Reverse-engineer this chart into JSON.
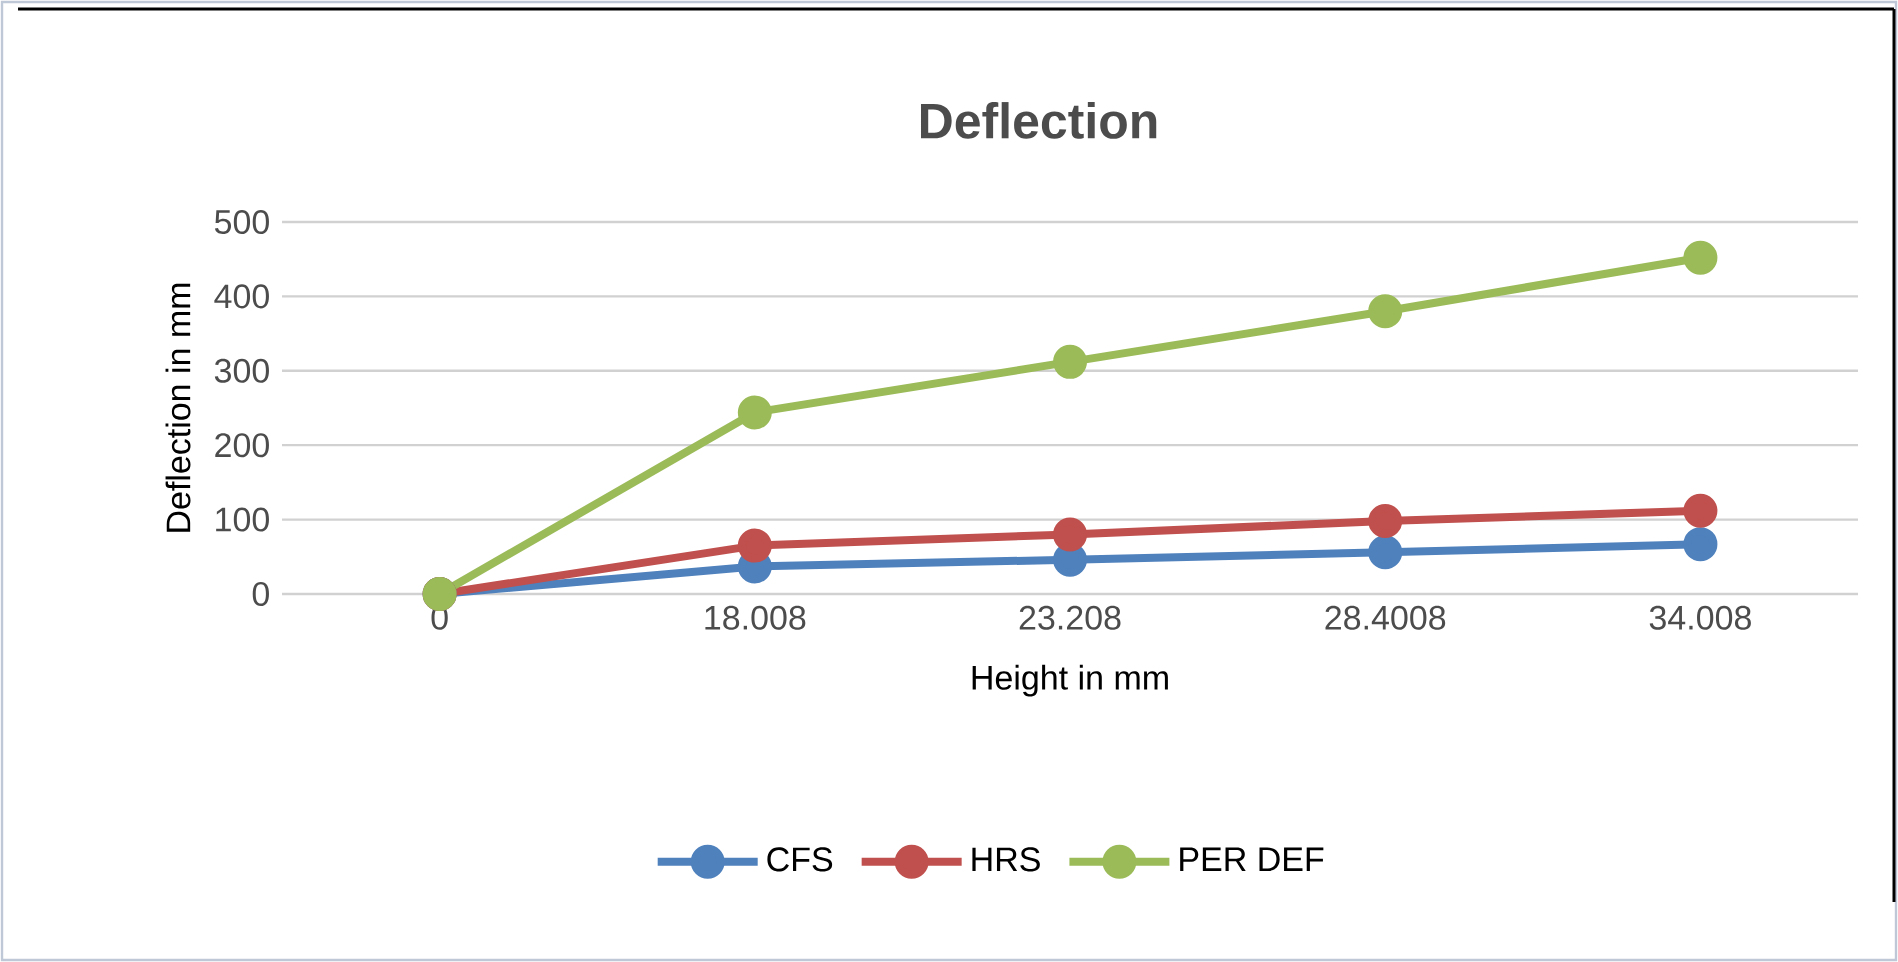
{
  "chart_data": {
    "type": "line",
    "title": "Deflection",
    "xlabel": "Height in mm",
    "ylabel": "Deflection in mm",
    "categories": [
      "0",
      "18.008",
      "23.208",
      "28.4008",
      "34.008"
    ],
    "series": [
      {
        "name": "CFS",
        "color": "#4f81bd",
        "values": [
          0,
          37,
          46,
          56,
          67
        ]
      },
      {
        "name": "HRS",
        "color": "#c0504d",
        "values": [
          0,
          65,
          80,
          98,
          112
        ]
      },
      {
        "name": "PER DEF",
        "color": "#9bbb59",
        "values": [
          0,
          244,
          312,
          380,
          452
        ]
      }
    ],
    "ylim": [
      0,
      500
    ],
    "yticks": [
      0,
      100,
      200,
      300,
      400,
      500
    ],
    "grid": "y",
    "legend": "bottom",
    "marker": "circle",
    "line_style": "solid"
  }
}
